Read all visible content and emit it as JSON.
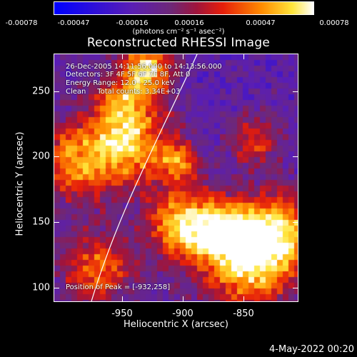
{
  "colorbar": {
    "ticks": [
      "-0.00078",
      "-0.00047",
      "-0.00016",
      "0.00016",
      "0.00047",
      "0.00078"
    ],
    "units": "(photons cm⁻² s⁻¹ asec⁻²)"
  },
  "title": "Reconstructed RHESSI Image",
  "info": {
    "time_range": "26-Dec-2005 14:11:56.000 to 14:13:56.000",
    "detectors": "Detectors: 3F 4F 5F 6F 7F 8F, Att 0",
    "energy_range": "Energy Range: 12.0 - 25.0 keV",
    "clean_counts": "Clean     Total counts: 3.34E+03",
    "peak_position": "Position of Peak = [-932,258]"
  },
  "axes": {
    "xlabel": "Heliocentric X (arcsec)",
    "ylabel": "Heliocentric Y (arcsec)",
    "xticks": [
      "-950",
      "-900",
      "-850"
    ],
    "yticks": [
      "250",
      "200",
      "150",
      "100"
    ]
  },
  "footer": "4-May-2022 00:20"
}
